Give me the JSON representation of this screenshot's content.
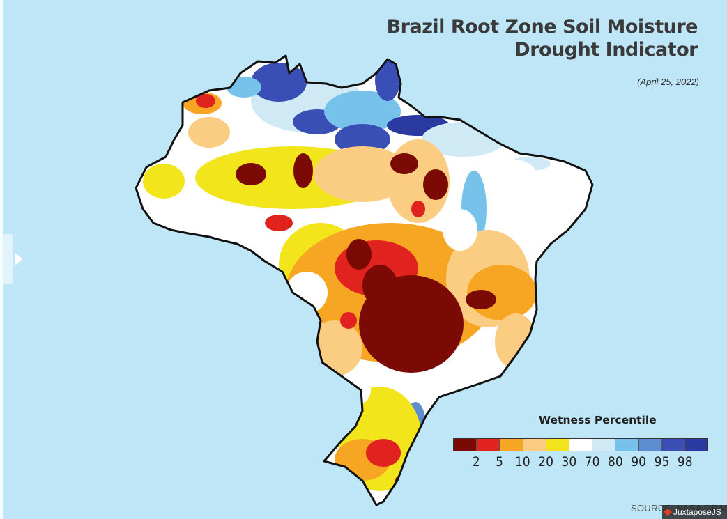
{
  "header": {
    "title_line1": "Brazil Root Zone Soil Moisture",
    "title_line2": "Drought Indicator",
    "date": "(April 25, 2022)"
  },
  "legend": {
    "title": "Wetness Percentile",
    "colors": [
      "#7b0a05",
      "#e0231e",
      "#f6a623",
      "#fbcd82",
      "#f2e51c",
      "#ffffff",
      "#cfe9f5",
      "#77c2ea",
      "#5b8dd0",
      "#3a4fb5",
      "#2a3aa0"
    ],
    "labels": [
      "2",
      "5",
      "10",
      "20",
      "30",
      "70",
      "80",
      "90",
      "95",
      "98"
    ]
  },
  "map": {
    "region": "Brazil",
    "colors": {
      "ocean": "#bfe6f7",
      "outline": "#111111",
      "extreme_dry": "#7b0a05",
      "very_dry": "#e0231e",
      "dry": "#f6a623",
      "moderate_dry": "#fbcd82",
      "slightly_dry": "#f2e51c",
      "normal": "#ffffff",
      "slightly_wet": "#cfe9f5",
      "wet": "#77c2ea",
      "very_wet": "#3a4fb5"
    }
  },
  "footer": {
    "source": "SOURCE: NASA GRACE",
    "credit": "JuxtaposeJS"
  }
}
